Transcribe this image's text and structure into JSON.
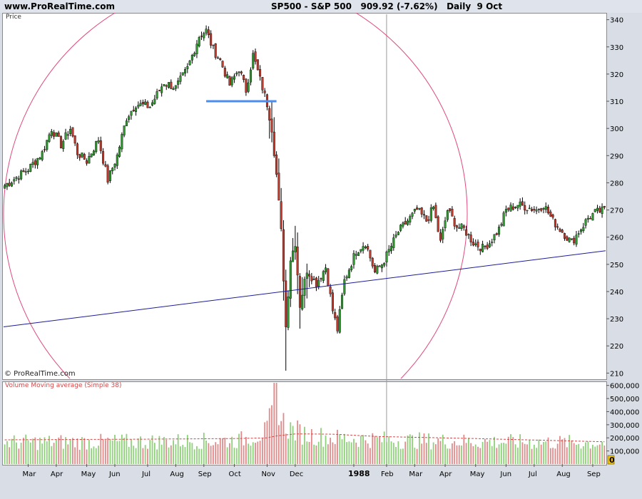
{
  "header": {
    "site": "www.ProRealTime.com",
    "title": "SP500 - S&P 500   909.92 (-7.62%)   Daily  9 Oct"
  },
  "panels": {
    "price_label": "Price",
    "volume_label": "Volume Moving average (Simple 38)",
    "copyright": "© ProRealTime.com"
  },
  "colors": {
    "candle_up": "#2e9a2e",
    "candle_down": "#c0392b",
    "resistance": "#4a8cf0",
    "trendline": "#1c1c9a",
    "arc": "#e04a80",
    "volume_ma": "#d04848",
    "marker_bg": "#f5c400"
  },
  "chart_data": [
    {
      "type": "candlestick",
      "y_axis_ticks": [
        210,
        220,
        230,
        240,
        250,
        260,
        270,
        280,
        290,
        300,
        310,
        320,
        330,
        340
      ],
      "ylim": [
        208,
        342
      ],
      "x_axis_labels": [
        "Mar",
        "Apr",
        "May",
        "Jun",
        "Jul",
        "Aug",
        "Sep",
        "Oct",
        "Nov",
        "Dec",
        "1988",
        "Feb",
        "Mar",
        "Apr",
        "May",
        "Jun",
        "Jul",
        "Aug",
        "Sep"
      ],
      "close_path": [
        [
          0,
          279
        ],
        [
          5,
          282
        ],
        [
          10,
          285
        ],
        [
          16,
          291
        ],
        [
          20,
          300
        ],
        [
          24,
          294
        ],
        [
          28,
          300
        ],
        [
          31,
          291
        ],
        [
          35,
          288
        ],
        [
          40,
          296
        ],
        [
          44,
          281
        ],
        [
          48,
          290
        ],
        [
          52,
          304
        ],
        [
          56,
          309
        ],
        [
          62,
          308
        ],
        [
          68,
          317
        ],
        [
          73,
          315
        ],
        [
          78,
          322
        ],
        [
          83,
          334
        ],
        [
          86,
          336
        ],
        [
          89,
          329
        ],
        [
          92,
          325
        ],
        [
          96,
          316
        ],
        [
          100,
          322
        ],
        [
          103,
          314
        ],
        [
          106,
          327
        ],
        [
          109,
          318
        ],
        [
          112,
          309
        ],
        [
          114,
          300
        ],
        [
          116,
          283
        ],
        [
          118,
          262
        ],
        [
          119,
          245
        ],
        [
          120,
          227
        ],
        [
          122,
          252
        ],
        [
          124,
          258
        ],
        [
          126,
          235
        ],
        [
          129,
          248
        ],
        [
          133,
          243
        ],
        [
          137,
          249
        ],
        [
          140,
          233
        ],
        [
          142,
          226
        ],
        [
          145,
          244
        ],
        [
          150,
          255
        ],
        [
          154,
          258
        ],
        [
          158,
          247
        ],
        [
          161,
          250
        ],
        [
          164,
          255
        ],
        [
          168,
          262
        ],
        [
          172,
          266
        ],
        [
          176,
          270
        ],
        [
          180,
          266
        ],
        [
          183,
          271
        ],
        [
          186,
          258
        ],
        [
          189,
          270
        ],
        [
          193,
          264
        ],
        [
          196,
          263
        ],
        [
          200,
          258
        ],
        [
          204,
          256
        ],
        [
          207,
          258
        ],
        [
          211,
          263
        ],
        [
          214,
          270
        ],
        [
          219,
          272
        ],
        [
          223,
          271
        ],
        [
          227,
          270
        ],
        [
          230,
          272
        ],
        [
          234,
          266
        ],
        [
          238,
          262
        ],
        [
          242,
          258
        ],
        [
          245,
          262
        ],
        [
          249,
          267
        ],
        [
          252,
          269
        ],
        [
          256,
          270
        ]
      ],
      "resistance_level": 310,
      "resistance_span": [
        86,
        116
      ],
      "trendline": {
        "start": [
          0,
          227
        ],
        "end": [
          256,
          255
        ]
      },
      "title": "SP500 - S&P 500"
    },
    {
      "type": "bar",
      "y_axis_ticks": [
        100000,
        200000,
        300000,
        400000,
        500000,
        600000
      ],
      "y_axis_labels": [
        "100,000",
        "200,000",
        "300,000",
        "400,000",
        "500,000",
        "600,000"
      ],
      "ylim": [
        0,
        620000
      ],
      "current_value_marker": "0",
      "volume_profile": [
        [
          0,
          175000
        ],
        [
          60,
          180000
        ],
        [
          100,
          190000
        ],
        [
          112,
          260000
        ],
        [
          114,
          400000
        ],
        [
          116,
          610000
        ],
        [
          118,
          350000
        ],
        [
          122,
          280000
        ],
        [
          128,
          240000
        ],
        [
          140,
          210000
        ],
        [
          170,
          190000
        ],
        [
          200,
          180000
        ],
        [
          256,
          170000
        ]
      ],
      "moving_average": [
        [
          0,
          185000
        ],
        [
          60,
          190000
        ],
        [
          100,
          195000
        ],
        [
          112,
          200000
        ],
        [
          116,
          215000
        ],
        [
          124,
          230000
        ],
        [
          140,
          228000
        ],
        [
          160,
          210000
        ],
        [
          200,
          195000
        ],
        [
          256,
          170000
        ]
      ]
    }
  ]
}
